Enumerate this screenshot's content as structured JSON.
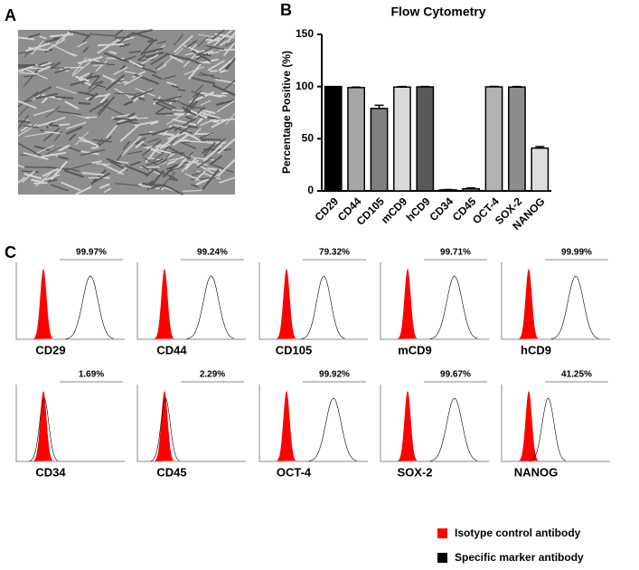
{
  "panels": [
    "A",
    "B",
    "C"
  ],
  "chart_data": [
    {
      "type": "bar",
      "title": "Flow Cytometry",
      "y_label": "Percentage Positive (%)",
      "categories": [
        "CD29",
        "CD44",
        "CD105",
        "mCD9",
        "hCD9",
        "CD34",
        "CD45",
        "OCT-4",
        "SOX-2",
        "NANOG"
      ],
      "values": [
        100,
        99,
        79,
        99.5,
        99.7,
        1,
        2,
        99.7,
        99.5,
        41
      ],
      "errors": [
        0,
        0.5,
        3,
        0.5,
        0.3,
        0.3,
        0.8,
        0.4,
        0.5,
        1.5
      ],
      "colors": [
        "#000000",
        "#a6a6a6",
        "#808080",
        "#d9d9d9",
        "#595959",
        "#cccccc",
        "#8c8c8c",
        "#b3b3b3",
        "#8c8c8c",
        "#dedede"
      ],
      "ylim": [
        0,
        150
      ],
      "yticks": [
        0,
        50,
        100,
        150
      ]
    },
    {
      "type": "flow-histograms",
      "categories": [
        "CD29",
        "CD44",
        "CD105",
        "mCD9",
        "hCD9",
        "CD34",
        "CD45",
        "OCT-4",
        "SOX-2",
        "NANOG"
      ],
      "values": [
        99.97,
        99.24,
        79.32,
        99.71,
        99.99,
        1.69,
        2.29,
        99.92,
        99.67,
        41.25
      ],
      "value_labels": [
        "99.97%",
        "99.24%",
        "79.32%",
        "99.71%",
        "99.99%",
        "1.69%",
        "2.29%",
        "99.92%",
        "99.67%",
        "41.25%"
      ],
      "series": [
        {
          "name": "Isotype control antibody",
          "color": "#ff0000"
        },
        {
          "name": "Specific marker antibody",
          "color": "#000000"
        }
      ]
    }
  ]
}
